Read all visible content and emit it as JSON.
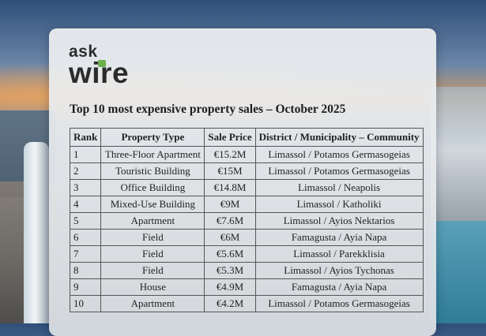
{
  "logo": {
    "line1": "ask",
    "line2": "wire",
    "accent_color": "#6ab04c"
  },
  "title": "Top 10 most expensive property sales – October 2025",
  "table": {
    "headers": [
      "Rank",
      "Property Type",
      "Sale Price",
      "District / Municipality – Community"
    ],
    "rows": [
      [
        "1",
        "Three-Floor Apartment",
        "€15.2M",
        "Limassol / Potamos Germasogeias"
      ],
      [
        "2",
        "Touristic Building",
        "€15M",
        "Limassol / Potamos Germasogeias"
      ],
      [
        "3",
        "Office Building",
        "€14.8M",
        "Limassol / Neapolis"
      ],
      [
        "4",
        "Mixed-Use Building",
        "€9M",
        "Limassol / Katholiki"
      ],
      [
        "5",
        "Apartment",
        "€7.6M",
        "Limassol / Ayios Nektarios"
      ],
      [
        "6",
        "Field",
        "€6M",
        "Famagusta / Ayia Napa"
      ],
      [
        "7",
        "Field",
        "€5.6M",
        "Limassol / Parekklisia"
      ],
      [
        "8",
        "Field",
        "€5.3M",
        "Limassol / Ayios Tychonas"
      ],
      [
        "9",
        "House",
        "€4.9M",
        "Famagusta / Ayia Napa"
      ],
      [
        "10",
        "Apartment",
        "€4.2M",
        "Limassol / Potamos Germasogeias"
      ]
    ]
  }
}
